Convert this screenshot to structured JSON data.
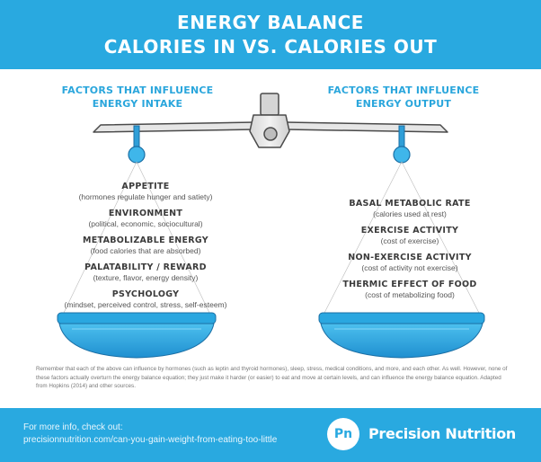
{
  "header": {
    "title_line1": "ENERGY BALANCE",
    "title_line2": "CALORIES IN VS. CALORIES OUT"
  },
  "intake": {
    "title_line1": "FACTORS THAT INFLUENCE",
    "title_line2": "ENERGY INTAKE",
    "factors": [
      {
        "name": "APPETITE",
        "desc": "(hormones regulate hunger and satiety)"
      },
      {
        "name": "ENVIRONMENT",
        "desc": "(political, economic, sociocultural)"
      },
      {
        "name": "METABOLIZABLE ENERGY",
        "desc": "(food calories that are absorbed)"
      },
      {
        "name": "PALATABILITY / REWARD",
        "desc": "(texture, flavor, energy density)"
      },
      {
        "name": "PSYCHOLOGY",
        "desc": "(mindset, perceived control, stress, self-esteem)"
      }
    ]
  },
  "output": {
    "title_line1": "FACTORS THAT INFLUENCE",
    "title_line2": "ENERGY OUTPUT",
    "factors": [
      {
        "name": "BASAL METABOLIC RATE",
        "desc": "(calories used at rest)"
      },
      {
        "name": "EXERCISE ACTIVITY",
        "desc": "(cost of exercise)"
      },
      {
        "name": "NON-EXERCISE ACTIVITY",
        "desc": "(cost of activity not exercise)"
      },
      {
        "name": "THERMIC EFFECT OF FOOD",
        "desc": "(cost of metabolizing food)"
      }
    ]
  },
  "footnote": "Remember that each of the above can influence by hormones (such as leptin and thyroid hormones), sleep, stress, medical conditions, and more, and each other. As well. However, none of these factors actually overturn the energy balance equation; they just make it harder (or easier) to eat and move at certain levels, and can influence the energy balance equation. Adapted from Hopkins (2014) and other sources.",
  "footer": {
    "info_line1": "For more info, check out:",
    "info_line2": "precisionnutrition.com/can-you-gain-weight-from-eating-too-little",
    "logo_text": "Pn",
    "brand": "Precision Nutrition"
  },
  "colors": {
    "brand_blue": "#29a9e0",
    "dark_blue": "#1e8fcf",
    "scale_gray": "#e3e3e3"
  }
}
